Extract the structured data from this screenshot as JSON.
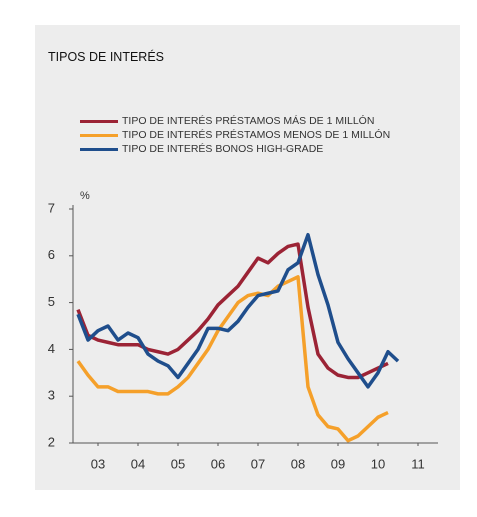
{
  "chart_data": {
    "type": "line",
    "title": "TIPOS DE INTERÉS",
    "y_label": "%",
    "x": [
      2003.0,
      2003.25,
      2003.5,
      2003.75,
      2004.0,
      2004.25,
      2004.5,
      2004.75,
      2005.0,
      2005.25,
      2005.5,
      2005.75,
      2006.0,
      2006.25,
      2006.5,
      2006.75,
      2007.0,
      2007.25,
      2007.5,
      2007.75,
      2008.0,
      2008.25,
      2008.5,
      2008.75,
      2009.0,
      2009.25,
      2009.5,
      2009.75,
      2010.0,
      2010.25,
      2010.5,
      2010.75,
      2011.0
    ],
    "series": [
      {
        "name": "TIPO DE INTERÉS PRÉSTAMOS MÁS DE 1 MILLÓN",
        "color": "#9b2335",
        "values": [
          4.85,
          4.3,
          4.2,
          4.15,
          4.1,
          4.1,
          4.1,
          4.0,
          3.95,
          3.9,
          4.0,
          4.2,
          4.4,
          4.65,
          4.95,
          5.15,
          5.35,
          5.65,
          5.95,
          5.85,
          6.05,
          6.2,
          6.25,
          4.9,
          3.9,
          3.6,
          3.45,
          3.4,
          3.4,
          3.5,
          3.6,
          3.7,
          null
        ]
      },
      {
        "name": "TIPO DE INTERÉS PRÉSTAMOS MENOS DE 1 MILLÓN",
        "color": "#f5a02a",
        "values": [
          3.75,
          3.45,
          3.2,
          3.2,
          3.1,
          3.1,
          3.1,
          3.1,
          3.05,
          3.05,
          3.2,
          3.4,
          3.7,
          4.0,
          4.4,
          4.7,
          5.0,
          5.15,
          5.2,
          5.15,
          5.35,
          5.45,
          5.55,
          3.2,
          2.6,
          2.35,
          2.3,
          2.05,
          2.15,
          2.35,
          2.55,
          2.65,
          null
        ]
      },
      {
        "name": "TIPO DE INTERÉS BONOS HIGH-GRADE",
        "color": "#1f4e8c",
        "values": [
          4.75,
          4.2,
          4.4,
          4.5,
          4.2,
          4.35,
          4.25,
          3.9,
          3.75,
          3.65,
          3.4,
          3.7,
          4.0,
          4.45,
          4.45,
          4.4,
          4.6,
          4.9,
          5.15,
          5.2,
          5.25,
          5.7,
          5.85,
          6.45,
          5.6,
          4.95,
          4.15,
          3.8,
          3.5,
          3.2,
          3.5,
          3.95,
          3.75
        ]
      }
    ],
    "xlim": [
      2002.875,
      2012.0
    ],
    "xticks": [
      {
        "value": 2003.5,
        "label": "03"
      },
      {
        "value": 2004.5,
        "label": "04"
      },
      {
        "value": 2005.5,
        "label": "05"
      },
      {
        "value": 2006.5,
        "label": "06"
      },
      {
        "value": 2007.5,
        "label": "07"
      },
      {
        "value": 2008.5,
        "label": "08"
      },
      {
        "value": 2009.5,
        "label": "09"
      },
      {
        "value": 2010.5,
        "label": "10"
      },
      {
        "value": 2011.5,
        "label": "11"
      }
    ],
    "ylim": [
      2,
      7
    ],
    "yticks": [
      2,
      3,
      4,
      5,
      6,
      7
    ]
  }
}
